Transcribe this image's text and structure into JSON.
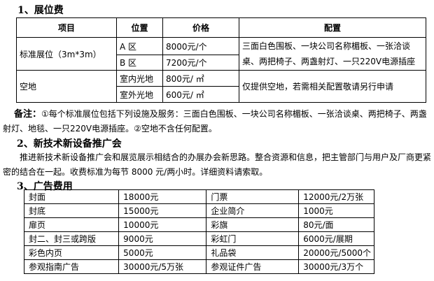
{
  "section1": {
    "title": "1、展位费",
    "headers": [
      "项目",
      "位置",
      "价格",
      "配置"
    ],
    "standard": {
      "item": "标准展位（3m*3m）",
      "rows": [
        {
          "pos": "A 区",
          "price": "8000元/个"
        },
        {
          "pos": "B 区",
          "price": "7200元/个"
        }
      ],
      "config": "三面白色围板、一块公司名称楣板、一张洽谈桌、两把椅子、两盏射灯、一只220V电源插座"
    },
    "space": {
      "item": "空地",
      "rows": [
        {
          "pos": "室内光地",
          "price": "800元/ ㎡"
        },
        {
          "pos": "室外光地",
          "price": "600元/ ㎡"
        }
      ],
      "config": "仅提供空地，若需相关配置敬请另行申请"
    }
  },
  "note": {
    "label": "备注：",
    "text": "①每个标准展位包括下列设施及服务：三面白色围板、一块公司名称楣板、一张洽谈桌、两把椅子、两盏射灯、地毯、一只220V电源插座。②空地不含任何配置。"
  },
  "section2": {
    "title": "2、新技术新设备推广会",
    "text": "推进新技术新设备推广会和展览展示相结合的办展办会新思路。整合资源和信息，把主管部门与用户及厂商更紧密的结合在一起。收费标准为每节 8000 元/两小时。详细资料请索取。"
  },
  "section3": {
    "title": "3、广告费用",
    "rows": [
      [
        "封面",
        "18000元",
        "门票",
        "12000元/2万张"
      ],
      [
        "封底",
        "15000元",
        "企业简介",
        "1000元"
      ],
      [
        "扉页",
        "10000元",
        "彩旗",
        "80元/面"
      ],
      [
        "封二、封三或跨版",
        "9000元",
        "彩虹门",
        "6000元/展期"
      ],
      [
        "彩色内页",
        "5000元",
        "礼品袋",
        "20000元/5000个"
      ],
      [
        "参观指南广告",
        "30000元/5万张",
        "参观证件广告",
        "30000元/3万个"
      ]
    ]
  }
}
